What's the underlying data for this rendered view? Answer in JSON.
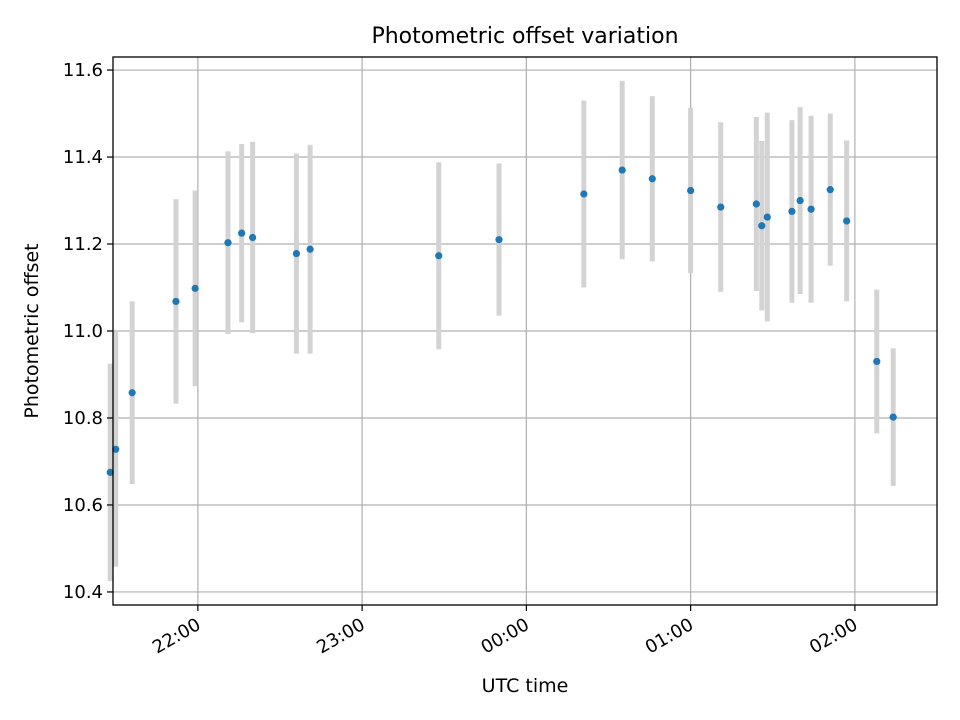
{
  "chart_data": {
    "type": "scatter",
    "title": "Photometric offset variation",
    "xlabel": "UTC time",
    "ylabel": "Photometric offset",
    "x_ticks": [
      "22:00",
      "23:00",
      "00:00",
      "01:00",
      "02:00"
    ],
    "y_ticks": [
      "10.4",
      "10.6",
      "10.8",
      "11.0",
      "11.2",
      "11.4",
      "11.6"
    ],
    "xlim": [
      "21:29",
      "02:30"
    ],
    "ylim": [
      10.37,
      11.63
    ],
    "grid": true,
    "colors": {
      "point": "#1f77b4",
      "errorbar": "#d3d3d3",
      "grid": "#b0b0b0"
    },
    "points": [
      {
        "t": "21:28",
        "y": 10.675,
        "err": 0.25
      },
      {
        "t": "21:30",
        "y": 10.728,
        "err": 0.27
      },
      {
        "t": "21:36",
        "y": 10.858,
        "err": 0.21
      },
      {
        "t": "21:52",
        "y": 11.068,
        "err": 0.235
      },
      {
        "t": "21:59",
        "y": 11.098,
        "err": 0.225
      },
      {
        "t": "22:11",
        "y": 11.203,
        "err": 0.21
      },
      {
        "t": "22:16",
        "y": 11.225,
        "err": 0.205
      },
      {
        "t": "22:20",
        "y": 11.215,
        "err": 0.22
      },
      {
        "t": "22:36",
        "y": 11.178,
        "err": 0.23
      },
      {
        "t": "22:41",
        "y": 11.188,
        "err": 0.24
      },
      {
        "t": "23:28",
        "y": 11.173,
        "err": 0.215
      },
      {
        "t": "23:50",
        "y": 11.21,
        "err": 0.175
      },
      {
        "t": "00:21",
        "y": 11.315,
        "err": 0.215
      },
      {
        "t": "00:35",
        "y": 11.37,
        "err": 0.205
      },
      {
        "t": "00:46",
        "y": 11.35,
        "err": 0.19
      },
      {
        "t": "01:00",
        "y": 11.323,
        "err": 0.19
      },
      {
        "t": "01:11",
        "y": 11.285,
        "err": 0.195
      },
      {
        "t": "01:24",
        "y": 11.292,
        "err": 0.2
      },
      {
        "t": "01:26",
        "y": 11.242,
        "err": 0.195
      },
      {
        "t": "01:28",
        "y": 11.262,
        "err": 0.24
      },
      {
        "t": "01:37",
        "y": 11.275,
        "err": 0.21
      },
      {
        "t": "01:40",
        "y": 11.3,
        "err": 0.215
      },
      {
        "t": "01:44",
        "y": 11.28,
        "err": 0.215
      },
      {
        "t": "01:51",
        "y": 11.325,
        "err": 0.175
      },
      {
        "t": "01:57",
        "y": 11.253,
        "err": 0.185
      },
      {
        "t": "02:08",
        "y": 10.93,
        "err": 0.165
      },
      {
        "t": "02:14",
        "y": 10.802,
        "err": 0.158
      }
    ]
  }
}
